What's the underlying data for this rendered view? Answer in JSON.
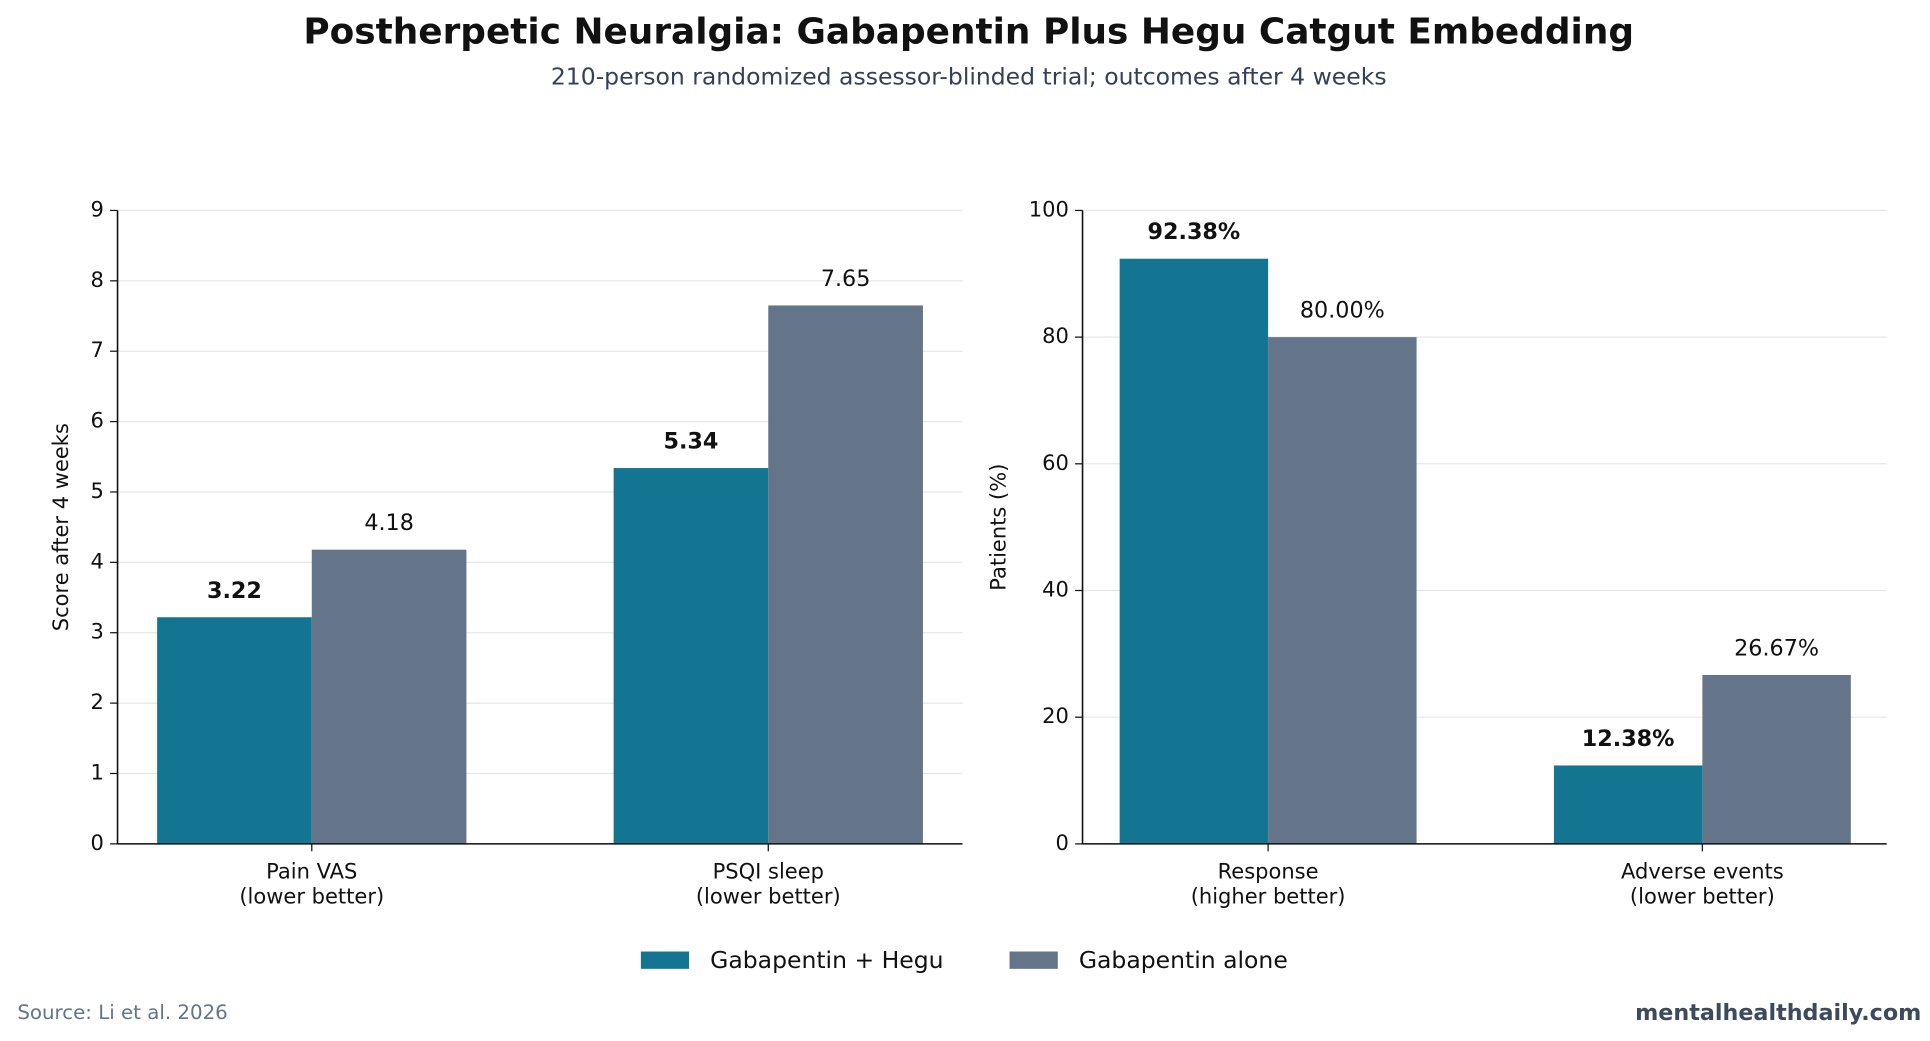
{
  "title": "Postherpetic Neuralgia: Gabapentin Plus Hegu Catgut Embedding",
  "subtitle": "210-person randomized assessor-blinded trial; outcomes after 4 weeks",
  "source": "Source: Li et al. 2026",
  "brand": "mentalhealthdaily.com",
  "chart_data": [
    {
      "type": "bar",
      "ylabel": "Score after 4 weeks",
      "categories": [
        "Pain VAS\n(lower better)",
        "PSQI sleep\n(lower better)"
      ],
      "series": [
        {
          "name": "Gabapentin + Hegu",
          "color": "#137591",
          "values": [
            3.22,
            5.34
          ]
        },
        {
          "name": "Gabapentin alone",
          "color": "#647489",
          "values": [
            4.18,
            7.65
          ]
        }
      ],
      "ylim": [
        0,
        9
      ],
      "yticks": [
        0,
        1,
        2,
        3,
        4,
        5,
        6,
        7,
        8,
        9
      ],
      "grid": true
    },
    {
      "type": "bar",
      "ylabel": "Patients (%)",
      "categories": [
        "Response\n(higher better)",
        "Adverse events\n(lower better)"
      ],
      "series": [
        {
          "color": "#137591",
          "values": [
            92.38,
            12.38
          ],
          "value_labels": [
            "92.38%",
            "12.38%"
          ]
        },
        {
          "color": "#647489",
          "values": [
            80,
            26.67
          ],
          "value_labels": [
            "80.00%",
            "26.67%"
          ]
        }
      ],
      "ylim": [
        0,
        100
      ],
      "yticks": [
        0,
        20,
        40,
        60,
        80,
        100
      ],
      "grid": true
    }
  ]
}
